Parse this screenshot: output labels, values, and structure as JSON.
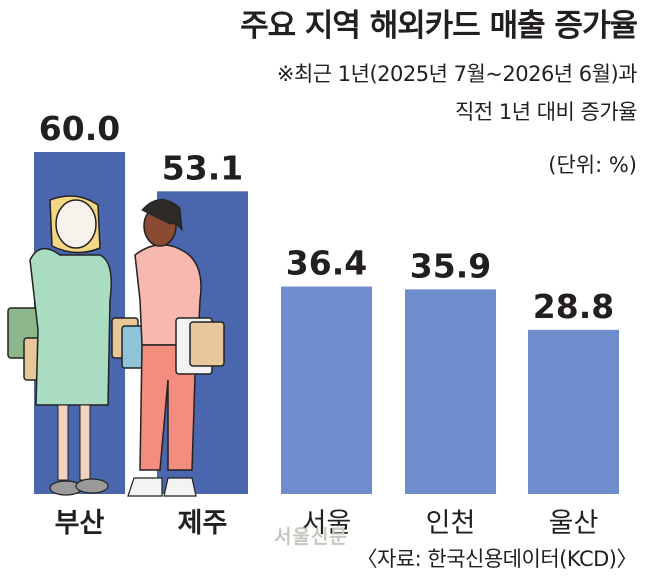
{
  "chart_data": {
    "type": "bar",
    "title": "주요 지역 해외카드 매출 증가율",
    "subtitle_lines": [
      "※최근 1년(2025년 7월~2026년 6월)과",
      "직전 1년 대비 증가율"
    ],
    "unit": "(단위: %)",
    "categories": [
      "부산",
      "제주",
      "서울",
      "인천",
      "울산"
    ],
    "values": [
      60.0,
      53.1,
      36.4,
      35.9,
      28.8
    ],
    "value_labels": [
      "60.0",
      "53.1",
      "36.4",
      "35.9",
      "28.8"
    ],
    "ylim": [
      0,
      60
    ],
    "grid": false,
    "colors": {
      "bar_dark": "#4a67ad",
      "bar_light": "#6f8ccc"
    },
    "source": "〈자료: 한국신용데이터(KCD)〉"
  },
  "watermark": "서울신문"
}
